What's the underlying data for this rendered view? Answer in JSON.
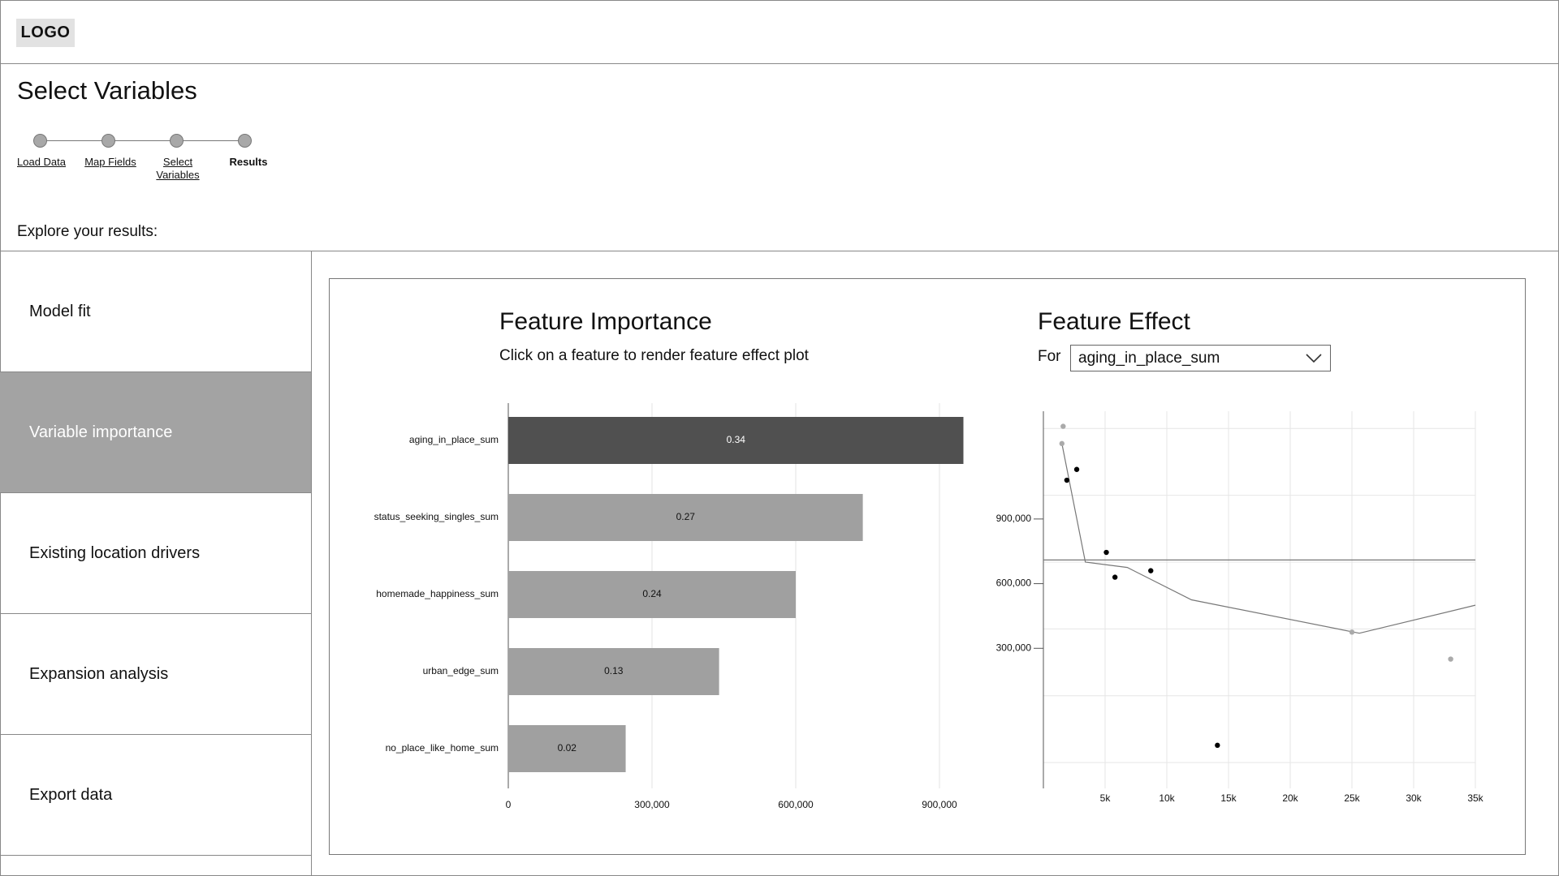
{
  "app": {
    "logo": "LOGO"
  },
  "page": {
    "title": "Select Variables",
    "explore_label": "Explore your results:"
  },
  "stepper": {
    "steps": [
      {
        "label": "Load Data",
        "state": "done"
      },
      {
        "label": "Map Fields",
        "state": "done"
      },
      {
        "label": "Select Variables",
        "state": "done"
      },
      {
        "label": "Results",
        "state": "current"
      }
    ]
  },
  "sidebar": {
    "items": [
      {
        "label": "Model fit",
        "active": false
      },
      {
        "label": "Variable importance",
        "active": true
      },
      {
        "label": "Existing location drivers",
        "active": false
      },
      {
        "label": "Expansion analysis",
        "active": false
      },
      {
        "label": "Export data",
        "active": false
      }
    ]
  },
  "feature_importance": {
    "title": "Feature Importance",
    "subtitle": "Click on a feature to render feature effect plot"
  },
  "feature_effect": {
    "title": "Feature Effect",
    "for_label": "For",
    "selected_feature": "aging_in_place_sum"
  },
  "colors": {
    "bar_selected": "#505050",
    "bar_default": "#a0a0a0",
    "sidebar_active": "#a3a3a3"
  },
  "chart_data": [
    {
      "type": "bar",
      "orientation": "horizontal",
      "categories": [
        "aging_in_place_sum",
        "status_seeking_singles_sum",
        "homemade_happiness_sum",
        "urban_edge_sum",
        "no_place_like_home_sum"
      ],
      "values": [
        950000,
        740000,
        600000,
        440000,
        245000
      ],
      "data_labels": [
        "0.34",
        "0.27",
        "0.24",
        "0.13",
        "0.02"
      ],
      "selected": "aging_in_place_sum",
      "xlim": [
        0,
        1000000
      ],
      "xticks": [
        0,
        300000,
        600000,
        900000
      ],
      "xtick_labels": [
        "0",
        "300,000",
        "600,000",
        "900,000"
      ],
      "grid": true
    },
    {
      "type": "scatter",
      "xlim": [
        0,
        35000
      ],
      "ylim": [
        -350000,
        1400000
      ],
      "xticks": [
        5000,
        10000,
        15000,
        20000,
        25000,
        30000,
        35000
      ],
      "xtick_labels": [
        "5k",
        "10k",
        "15k",
        "20k",
        "25k",
        "30k",
        "35k"
      ],
      "yticks": [
        300000,
        600000,
        900000
      ],
      "ytick_labels": [
        "300,000",
        "600,000",
        "900,000"
      ],
      "reference_line_y": 710000,
      "grid": true,
      "series": [
        {
          "kind": "points",
          "color": "#000000",
          "x": [
            1900,
            2700,
            5100,
            5800,
            8700,
            14100
          ],
          "y": [
            1080000,
            1130000,
            745000,
            630000,
            660000,
            -150000
          ]
        },
        {
          "kind": "points",
          "color": "#aaaaaa",
          "x": [
            1600,
            1500,
            25000,
            33000
          ],
          "y": [
            1330000,
            1250000,
            375000,
            250000
          ]
        },
        {
          "kind": "line",
          "color": "#777777",
          "x": [
            1500,
            3400,
            6800,
            12000,
            25600,
            35000
          ],
          "y": [
            1250000,
            700000,
            675000,
            525000,
            370000,
            500000
          ]
        }
      ]
    }
  ]
}
